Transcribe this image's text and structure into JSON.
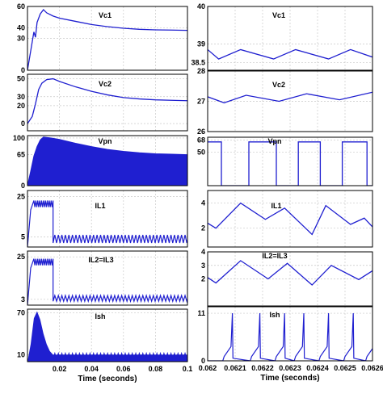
{
  "colors": {
    "trace": "#1f1fd0",
    "grid": "#c8c8c8",
    "axis": "#000000"
  },
  "chart_data": [
    {
      "type": "line",
      "panel_label": "Vc1",
      "x_range": [
        0,
        0.1
      ],
      "ylim": [
        0,
        60
      ],
      "yticks": [
        "60",
        "40",
        "30",
        "0"
      ],
      "ytick_values": [
        60,
        40,
        30,
        0
      ],
      "xticks": [],
      "grid": true,
      "series": [
        {
          "x": [
            0,
            0.002,
            0.004,
            0.005,
            0.006,
            0.008,
            0.01,
            0.012,
            0.016,
            0.02,
            0.03,
            0.04,
            0.05,
            0.06,
            0.07,
            0.08,
            0.09,
            0.1
          ],
          "y": [
            0,
            18,
            36,
            31,
            45,
            53,
            57,
            54,
            51,
            49,
            46,
            43,
            41,
            39.5,
            38.5,
            38,
            37.8,
            37.5
          ]
        }
      ]
    },
    {
      "type": "line",
      "panel_label": "Vc2",
      "x_range": [
        0,
        0.1
      ],
      "ylim": [
        -8,
        55
      ],
      "yticks": [
        "50",
        "30",
        "20",
        "0"
      ],
      "ytick_values": [
        50,
        30,
        20,
        0
      ],
      "xticks": [],
      "grid": true,
      "series": [
        {
          "x": [
            0,
            0.003,
            0.005,
            0.007,
            0.009,
            0.012,
            0.016,
            0.02,
            0.03,
            0.04,
            0.05,
            0.06,
            0.07,
            0.08,
            0.09,
            0.1
          ],
          "y": [
            0,
            8,
            22,
            38,
            45,
            49,
            50,
            47,
            41,
            36,
            32,
            29,
            27.5,
            26.5,
            26,
            25.5
          ]
        }
      ]
    },
    {
      "type": "area",
      "panel_label": "Vpn",
      "x_range": [
        0,
        0.1
      ],
      "ylim": [
        0,
        105
      ],
      "yticks": [
        "100",
        "65",
        "0"
      ],
      "ytick_values": [
        100,
        65,
        0
      ],
      "xticks": [],
      "grid": true,
      "series": [
        {
          "x": [
            0,
            0.002,
            0.004,
            0.006,
            0.008,
            0.01,
            0.015,
            0.02,
            0.03,
            0.04,
            0.05,
            0.06,
            0.07,
            0.08,
            0.09,
            0.1
          ],
          "y": [
            0,
            30,
            62,
            82,
            96,
            102,
            100,
            97,
            89,
            82,
            76,
            72,
            69,
            67,
            66,
            65
          ]
        }
      ]
    },
    {
      "type": "line",
      "panel_label": "IL1",
      "x_range": [
        0,
        0.1
      ],
      "ylim": [
        0,
        28
      ],
      "yticks": [
        "25",
        "5"
      ],
      "ytick_values": [
        25,
        5
      ],
      "xticks": [],
      "grid": true,
      "series": [
        {
          "spike_to": 23,
          "spike_until": 0.015,
          "ripple_low": 2,
          "ripple_high": 6,
          "ripple_period": 0.0022
        }
      ]
    },
    {
      "type": "line",
      "panel_label": "IL2=IL3",
      "x_range": [
        0,
        0.1
      ],
      "ylim": [
        0,
        28
      ],
      "yticks": [
        "25",
        "3"
      ],
      "ytick_values": [
        25,
        3
      ],
      "xticks": [],
      "grid": true,
      "series": [
        {
          "spike_to": 24,
          "spike_until": 0.015,
          "ripple_low": 2,
          "ripple_high": 5,
          "ripple_period": 0.0022
        }
      ]
    },
    {
      "type": "area",
      "panel_label": "Ish",
      "x_range": [
        0,
        0.1
      ],
      "ylim": [
        0,
        75
      ],
      "yticks": [
        "70",
        "10"
      ],
      "ytick_values": [
        70,
        10
      ],
      "xticks": [
        "0.02",
        "0.04",
        "0.06",
        "0.08",
        "0.1"
      ],
      "xtick_values": [
        0.02,
        0.04,
        0.06,
        0.08,
        0.1
      ],
      "xlabel": "Time (seconds)",
      "grid": true,
      "series": [
        {
          "x": [
            0,
            0.002,
            0.004,
            0.006,
            0.008,
            0.01,
            0.012,
            0.014,
            0.016,
            0.1
          ],
          "y": [
            0,
            25,
            62,
            72,
            60,
            40,
            25,
            15,
            10,
            10
          ]
        }
      ]
    },
    {
      "type": "line",
      "panel_label": "Vc1",
      "x_range": [
        0.062,
        0.0626
      ],
      "ylim": [
        38.3,
        40
      ],
      "yticks": [
        "40",
        "39",
        "38.5"
      ],
      "ytick_values": [
        40,
        39,
        38.5
      ],
      "xticks": [],
      "grid": true,
      "series": [
        {
          "x": [
            0.062,
            0.06204,
            0.06212,
            0.06224,
            0.06232,
            0.06244,
            0.06252,
            0.0626
          ],
          "y": [
            38.85,
            38.6,
            38.85,
            38.6,
            38.85,
            38.6,
            38.85,
            38.65
          ]
        }
      ]
    },
    {
      "type": "line",
      "panel_label": "Vc2",
      "x_range": [
        0.062,
        0.0626
      ],
      "ylim": [
        26,
        28
      ],
      "yticks": [
        "28",
        "27",
        "26"
      ],
      "ytick_values": [
        28,
        27,
        26
      ],
      "xticks": [],
      "grid": true,
      "series": [
        {
          "x": [
            0.062,
            0.06206,
            0.06214,
            0.06226,
            0.06236,
            0.06248,
            0.0626
          ],
          "y": [
            27.15,
            26.95,
            27.2,
            27.0,
            27.25,
            27.05,
            27.3
          ]
        }
      ]
    },
    {
      "type": "line",
      "panel_label": "Vpn",
      "x_range": [
        0.062,
        0.0626
      ],
      "ylim": [
        0,
        72
      ],
      "yticks": [
        "68",
        "50"
      ],
      "ytick_values": [
        68,
        50
      ],
      "xticks": [],
      "grid": true,
      "series": [
        {
          "high": 65,
          "low": 0,
          "edges": [
            0.062,
            0.06205,
            0.06215,
            0.06225,
            0.06233,
            0.06241,
            0.06249,
            0.06258,
            0.0626
          ]
        }
      ]
    },
    {
      "type": "line",
      "panel_label": "IL1",
      "x_range": [
        0.062,
        0.0626
      ],
      "ylim": [
        0.5,
        5
      ],
      "yticks": [
        "4",
        "2"
      ],
      "ytick_values": [
        4,
        2
      ],
      "xticks": [],
      "grid": true,
      "series": [
        {
          "x": [
            0.062,
            0.06203,
            0.06212,
            0.06221,
            0.06228,
            0.06238,
            0.06243,
            0.06252,
            0.06257,
            0.0626
          ],
          "y": [
            2.4,
            2.0,
            4.0,
            2.7,
            3.6,
            1.5,
            3.8,
            2.3,
            2.8,
            2.1
          ]
        }
      ]
    },
    {
      "type": "line",
      "panel_label": "IL2=IL3",
      "x_range": [
        0.062,
        0.0626
      ],
      "ylim": [
        0,
        4
      ],
      "yticks": [
        "4",
        "3",
        "2"
      ],
      "ytick_values": [
        4,
        3,
        2
      ],
      "xticks": [],
      "grid": true,
      "series": [
        {
          "x": [
            0.062,
            0.06203,
            0.06212,
            0.06222,
            0.06229,
            0.06238,
            0.06245,
            0.06255,
            0.0626
          ],
          "y": [
            2.1,
            1.7,
            3.35,
            2.0,
            3.15,
            1.55,
            3.0,
            1.95,
            2.6
          ]
        }
      ]
    },
    {
      "type": "line",
      "panel_label": "Ish",
      "x_range": [
        0.062,
        0.0626
      ],
      "ylim": [
        0,
        12.5
      ],
      "yticks": [
        "11",
        "0"
      ],
      "ytick_values": [
        11,
        0
      ],
      "xticks": [
        "0.062",
        "0.0621",
        "0.0622",
        "0.0623",
        "0.0624",
        "0.0625",
        "0.0626"
      ],
      "xtick_values": [
        0.062,
        0.0621,
        0.0622,
        0.0623,
        0.0624,
        0.0625,
        0.0626
      ],
      "xlabel": "Time (seconds)",
      "grid": true,
      "series": [
        {
          "pulses": [
            0.06206,
            0.06216,
            0.06225,
            0.06232,
            0.06241,
            0.0625,
            0.06258
          ],
          "peak": 11,
          "base": 1
        }
      ]
    }
  ]
}
